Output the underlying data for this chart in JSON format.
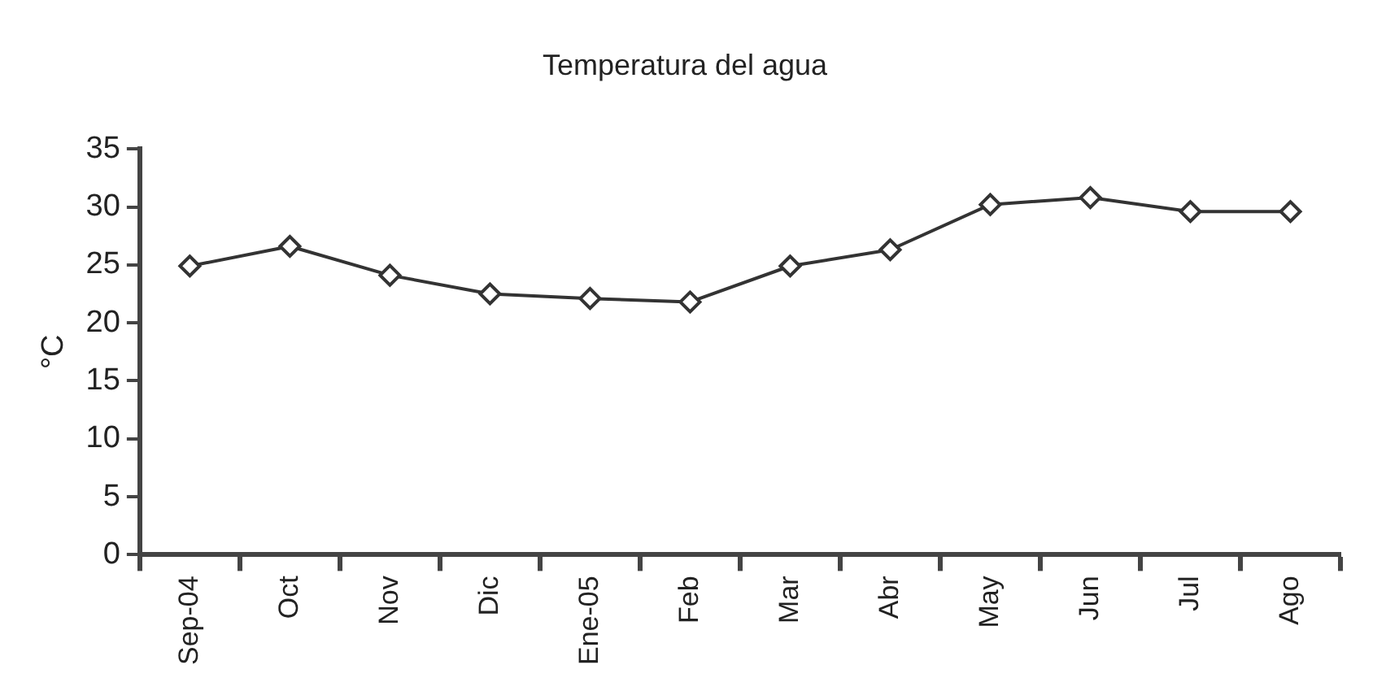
{
  "chart_data": {
    "type": "line",
    "title": "Temperatura del agua",
    "ylabel": "°C",
    "categories": [
      "Sep-04",
      "Oct",
      "Nov",
      "Dic",
      "Ene-05",
      "Feb",
      "Mar",
      "Abr",
      "May",
      "Jun",
      "Jul",
      "Ago"
    ],
    "series": [
      {
        "color": "#333333",
        "values": [
          24.9,
          26.6,
          24.1,
          22.5,
          22.1,
          21.8,
          24.9,
          26.3,
          30.2,
          30.8,
          29.6,
          29.6
        ]
      }
    ],
    "ylim": [
      0,
      35
    ],
    "yticks": [
      0,
      5,
      10,
      15,
      20,
      25,
      30,
      35
    ],
    "grid": false,
    "legend": false,
    "marker": "diamond",
    "line_style": "solid"
  }
}
